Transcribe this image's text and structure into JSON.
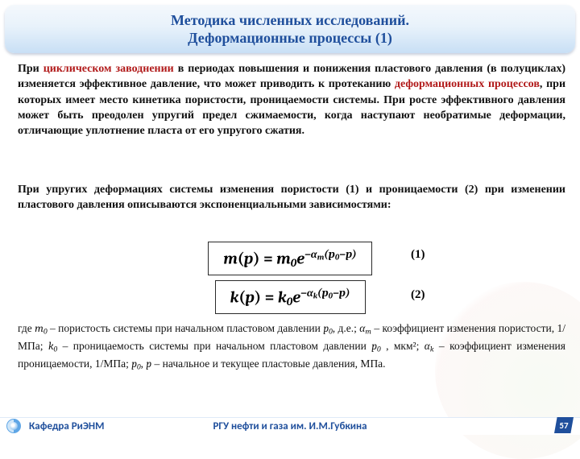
{
  "header": {
    "line1": "Методика численных исследований.",
    "line2": "Деформационные процессы (1)"
  },
  "para1": {
    "pre": "При ",
    "em1": "циклическом заводнении",
    "mid1": " в периодах повышения и понижения пластового давления (в полуциклах) изменяется эффективное давление, что может приводить к протеканию ",
    "em2": "деформационных процессов",
    "mid2": ", при которых имеет место кинетика пористости, проницаемости системы. При росте эффективного давления может быть преодолен упругий предел сжимаемости, когда наступают необратимые деформации, отличающие уплотнение пласта от его упругого сжатия."
  },
  "para2": "При упругих деформациях системы изменения пористости (1) и проницаемости (2) при изменении пластового давления описываются экспоненциальными зависимостями:",
  "equations": {
    "eq1_label": "(1)",
    "eq2_label": "(2)"
  },
  "legend": {
    "t0": "где  ",
    "m0": "m",
    "m0_sub": "0",
    "t1": " – пористость системы при начальном пластовом давлении ",
    "p0": "p",
    "p0_sub": "0",
    "t2": ", д.е.; ",
    "am": "α",
    "am_sub": "m",
    "t3": " – коэффициент изменения пористости, 1/МПа; ",
    "k0": "k",
    "k0_sub": "0",
    "t4": " – проницаемость системы при начальном пластовом давлении ",
    "p0b": "p",
    "p0b_sub": "0",
    "t5": " , мкм²; ",
    "ak": "α",
    "ak_sub": "k",
    "t6": " – коэффициент изменения проницаемости, 1/МПа;  ",
    "p0c": "p",
    "p0c_sub": "0",
    "t7": ", ",
    "p": "p",
    "t8": " – начальное и текущее пластовые давления, МПа."
  },
  "footer": {
    "left": "Кафедра РиЭНМ",
    "center": "РГУ нефти и газа им. И.М.Губкина",
    "slide": "57"
  },
  "colors": {
    "accent_blue": "#1f4f9c",
    "accent_red": "#b11a1a",
    "band_top": "#f4f8fc",
    "band_bot": "#c8dff5"
  }
}
